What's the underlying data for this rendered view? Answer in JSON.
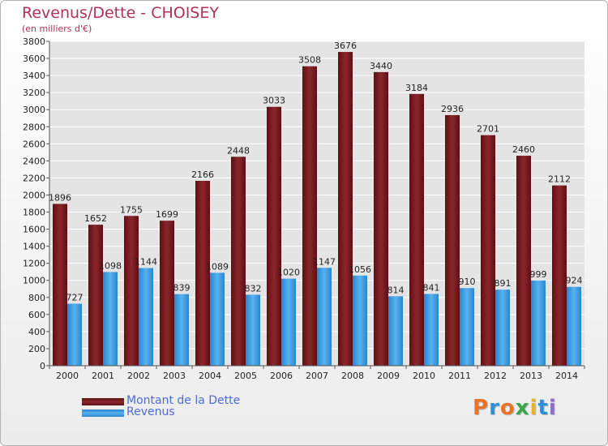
{
  "chart_data": {
    "type": "bar",
    "title": "Revenus/Dette - CHOISEY",
    "subtitle": "(en milliers d'€)",
    "categories": [
      "2000",
      "2001",
      "2002",
      "2003",
      "2004",
      "2005",
      "2006",
      "2007",
      "2008",
      "2009",
      "2010",
      "2011",
      "2012",
      "2013",
      "2014"
    ],
    "series": [
      {
        "name": "Montant de la Dette",
        "values": [
          1896,
          1652,
          1755,
          1699,
          2166,
          2448,
          3033,
          3508,
          3676,
          3440,
          3184,
          2936,
          2701,
          2460,
          2112
        ],
        "color": "#7a1c21"
      },
      {
        "name": "Revenus",
        "values": [
          727,
          1098,
          1144,
          839,
          1089,
          832,
          1020,
          1147,
          1056,
          814,
          841,
          910,
          891,
          999,
          924
        ],
        "color": "#3c9fe2"
      }
    ],
    "ylim": [
      0,
      3800
    ],
    "yticks": [
      0,
      200,
      400,
      600,
      800,
      1000,
      1200,
      1400,
      1600,
      1800,
      2000,
      2200,
      2400,
      2600,
      2800,
      3000,
      3200,
      3400,
      3600,
      3800
    ],
    "grid": true,
    "legend_position": "bottom-left"
  },
  "brand": {
    "letters": [
      "P",
      "r",
      "o",
      "x",
      "i",
      "t",
      "i"
    ],
    "colors": [
      "#e8742a",
      "#2d8fd6",
      "#e8742a",
      "#3aa64a",
      "#e2b72a",
      "#2d8fd6",
      "#8f6ad3"
    ]
  }
}
